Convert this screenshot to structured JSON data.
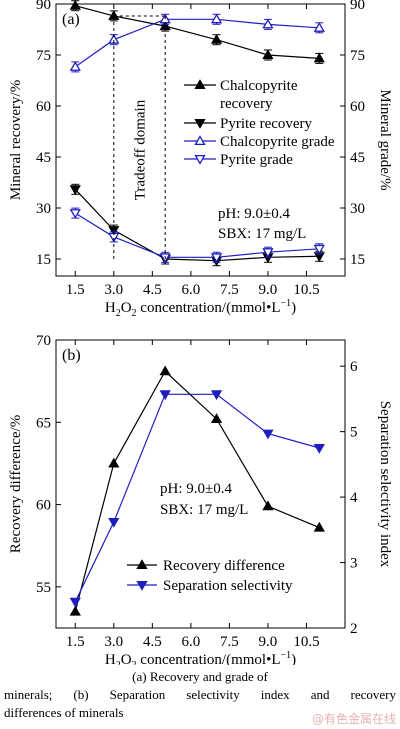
{
  "chart_data": [
    {
      "type": "line",
      "panel_label": "(a)",
      "x": [
        1.5,
        3.0,
        5.0,
        7.0,
        9.0,
        11.0
      ],
      "xticks": [
        "1.5",
        "3.0",
        "4.5",
        "6.0",
        "7.5",
        "9.0",
        "10.5"
      ],
      "xlim": [
        0.75,
        12.0
      ],
      "xlabel_main": "H",
      "xlabel_sub": "2",
      "xlabel_mid": "O",
      "xlabel_sub2": "2",
      "xlabel_rest": " concentration/(mmol•L",
      "xlabel_sup": "−1",
      "xlabel_end": ")",
      "ylabel_left": "Mineral recovery/%",
      "ylim_left": [
        10,
        90
      ],
      "yticks_left": [
        "15",
        "30",
        "45",
        "60",
        "75",
        "90"
      ],
      "ylabel_right": "Mineral grade/%",
      "ylim_right": [
        10,
        90
      ],
      "yticks_right": [
        "15",
        "30",
        "45",
        "60",
        "75",
        "90"
      ],
      "series": [
        {
          "name": "Chalcopyrite recovery",
          "name_line2": "recovery",
          "name_line1": "Chalcopyrite",
          "axis": "left",
          "color": "#000000",
          "marker": "triangle-up-filled",
          "values": [
            89.5,
            86.5,
            83.5,
            79.5,
            75.0,
            74.0
          ]
        },
        {
          "name": "Pyrite recovery",
          "axis": "left",
          "color": "#000000",
          "marker": "triangle-down-filled",
          "values": [
            35.5,
            23.5,
            15.0,
            14.5,
            15.5,
            15.8
          ]
        },
        {
          "name": "Chalcopyrite grade",
          "axis": "right",
          "color": "#1f1fbf",
          "marker": "triangle-up-open",
          "values": [
            71.5,
            79.5,
            85.5,
            85.5,
            84.0,
            83.0
          ]
        },
        {
          "name": "Pyrite grade",
          "axis": "right",
          "color": "#1f1fbf",
          "marker": "triangle-down-open",
          "values": [
            28.5,
            21.5,
            15.5,
            15.5,
            17.0,
            18.0
          ]
        }
      ],
      "annotation_domain": "Tradeoff domain",
      "annotation_ph": "pH: 9.0±0.4",
      "annotation_sbx": "SBX: 17 mg/L"
    },
    {
      "type": "line",
      "panel_label": "(b)",
      "x": [
        1.5,
        3.0,
        5.0,
        7.0,
        9.0,
        11.0
      ],
      "xticks": [
        "1.5",
        "3.0",
        "4.5",
        "6.0",
        "7.5",
        "9.0",
        "10.5"
      ],
      "xlim": [
        0.75,
        12.0
      ],
      "ylabel_left": "Recovery difference/%",
      "ylim_left": [
        52.5,
        70
      ],
      "yticks_left": [
        "55",
        "60",
        "65",
        "70"
      ],
      "ylabel_right": "Separation selectivity index",
      "ylim_right": [
        2.0,
        6.4
      ],
      "yticks_right": [
        "2",
        "3",
        "4",
        "5",
        "6"
      ],
      "series": [
        {
          "name": "Recovery difference",
          "axis": "left",
          "color": "#000000",
          "marker": "triangle-up-filled",
          "values": [
            53.5,
            62.5,
            68.1,
            65.2,
            59.9,
            58.6
          ]
        },
        {
          "name": "Separation selectivity",
          "axis": "right",
          "color": "#1f1fbf",
          "marker": "triangle-down-filled",
          "values": [
            2.4,
            3.62,
            5.57,
            5.57,
            4.97,
            4.75
          ]
        }
      ],
      "annotation_ph": "pH: 9.0±0.4",
      "annotation_sbx": "SBX: 17 mg/L"
    }
  ],
  "caption": {
    "line1": "(a) Recovery and grade of",
    "line2": "minerals;  (b)  Separation  selectivity  index  and  recovery",
    "line3": "differences of minerals"
  },
  "watermark": "@有色金属在线"
}
